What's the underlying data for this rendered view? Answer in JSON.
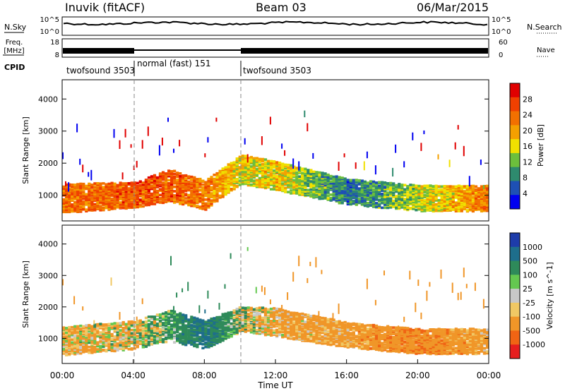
{
  "header": {
    "station": "Inuvik (fitACF)",
    "beam": "Beam 03",
    "date": "06/Mar/2015"
  },
  "noise_panel": {
    "left_label": "N.Sky",
    "right_label": "N.Search",
    "left_ticks": [
      "10^5",
      "10^0"
    ],
    "right_ticks": [
      "10^5",
      "10^0"
    ]
  },
  "freq_panel": {
    "left_label_1": "Freq.",
    "left_label_2": "[MHz]",
    "right_label": "Nave",
    "left_ticks": [
      "18",
      "8"
    ],
    "right_ticks": [
      "60",
      "0"
    ]
  },
  "cpid": {
    "label": "CPID",
    "segments": [
      {
        "name": "twofsound 3503",
        "start_hour": 0,
        "end_hour": 4
      },
      {
        "name": "normal (fast) 151",
        "start_hour": 4,
        "end_hour": 10
      },
      {
        "name": "twofsound 3503",
        "start_hour": 10,
        "end_hour": 24
      }
    ]
  },
  "colors": {
    "power_scale": [
      "#0000f0",
      "#1e50b4",
      "#2e8a6e",
      "#6cbf3c",
      "#f0e000",
      "#f4a000",
      "#f27000",
      "#f04000",
      "#e00000"
    ],
    "velocity_scale": [
      "#1e3caa",
      "#1e6e8c",
      "#2e8a5a",
      "#64c850",
      "#c8c8c8",
      "#f0c864",
      "#f09628",
      "#f06414",
      "#e61e1e"
    ]
  },
  "chart_data": [
    {
      "type": "heatmap",
      "title": "",
      "xlabel": "Time UT",
      "ylabel": "Slant Range [km]",
      "xlim": [
        0,
        24
      ],
      "ylim": [
        200,
        4600
      ],
      "x_ticks": [
        "00:00",
        "04:00",
        "08:00",
        "12:00",
        "16:00",
        "20:00",
        "00:00"
      ],
      "y_ticks": [
        "1000",
        "2000",
        "3000",
        "4000"
      ],
      "colorbar_label": "Power [dB]",
      "colorbar_ticks": [
        "4",
        "8",
        "12",
        "16",
        "20",
        "24",
        "28"
      ],
      "bands": [
        {
          "hour": 0,
          "center_km": 900,
          "width_km": 900,
          "value": 26
        },
        {
          "hour": 4,
          "center_km": 1000,
          "width_km": 800,
          "value": 28
        },
        {
          "hour": 6,
          "center_km": 1300,
          "width_km": 1000,
          "value": 28
        },
        {
          "hour": 8,
          "center_km": 1000,
          "width_km": 900,
          "value": 26
        },
        {
          "hour": 10,
          "center_km": 1800,
          "width_km": 900,
          "value": 18
        },
        {
          "hour": 12,
          "center_km": 1600,
          "width_km": 900,
          "value": 20
        },
        {
          "hour": 16,
          "center_km": 1100,
          "width_km": 800,
          "value": 8
        },
        {
          "hour": 20,
          "center_km": 900,
          "width_km": 800,
          "value": 16
        },
        {
          "hour": 24,
          "center_km": 900,
          "width_km": 800,
          "value": 26
        }
      ]
    },
    {
      "type": "heatmap",
      "title": "",
      "xlabel": "Time UT",
      "ylabel": "Slant Range [km]",
      "xlim": [
        0,
        24
      ],
      "ylim": [
        200,
        4600
      ],
      "x_ticks": [
        "00:00",
        "04:00",
        "08:00",
        "12:00",
        "16:00",
        "20:00",
        "00:00"
      ],
      "y_ticks": [
        "1000",
        "2000",
        "3000",
        "4000"
      ],
      "colorbar_label": "Velocity [m s^-1]",
      "colorbar_ticks": [
        "1000",
        "500",
        "100",
        "25",
        "-25",
        "-100",
        "-500",
        "-1000"
      ],
      "bands": [
        {
          "hour": 0,
          "center_km": 900,
          "width_km": 900,
          "value": -150
        },
        {
          "hour": 4,
          "center_km": 1100,
          "width_km": 900,
          "value": -100
        },
        {
          "hour": 6,
          "center_km": 1400,
          "width_km": 1000,
          "value": 200
        },
        {
          "hour": 8,
          "center_km": 1100,
          "width_km": 900,
          "value": 600
        },
        {
          "hour": 10,
          "center_km": 1600,
          "width_km": 800,
          "value": 0
        },
        {
          "hour": 12,
          "center_km": 1500,
          "width_km": 900,
          "value": -200
        },
        {
          "hour": 16,
          "center_km": 1100,
          "width_km": 800,
          "value": -250
        },
        {
          "hour": 20,
          "center_km": 900,
          "width_km": 800,
          "value": -400
        },
        {
          "hour": 24,
          "center_km": 900,
          "width_km": 800,
          "value": -200
        }
      ]
    }
  ]
}
